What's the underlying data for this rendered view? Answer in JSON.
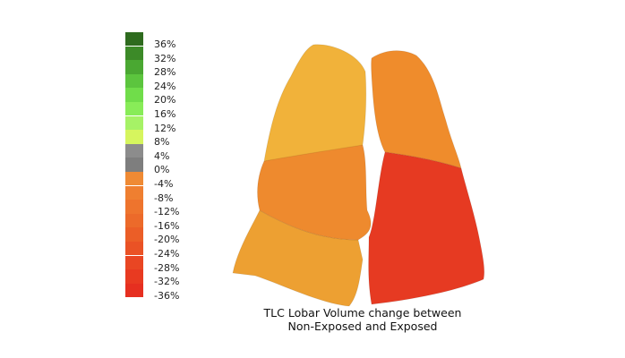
{
  "legend": {
    "items": [
      {
        "label": "36%",
        "color": "#2e6b1e"
      },
      {
        "label": "32%",
        "color": "#3c8a28"
      },
      {
        "label": "28%",
        "color": "#4aa832"
      },
      {
        "label": "24%",
        "color": "#5cc53e"
      },
      {
        "label": "20%",
        "color": "#70dd4a"
      },
      {
        "label": "16%",
        "color": "#88ec58"
      },
      {
        "label": "12%",
        "color": "#a6f266"
      },
      {
        "label": "8%",
        "color": "#d6f55e"
      },
      {
        "label": "4%",
        "color": "#8c8c8c"
      },
      {
        "label": "0%",
        "color": "#7e7e7e"
      },
      {
        "label": "-4%",
        "color": "#ef8a34"
      },
      {
        "label": "-8%",
        "color": "#ef7f30"
      },
      {
        "label": "-12%",
        "color": "#ee742d"
      },
      {
        "label": "-16%",
        "color": "#ec6a2a"
      },
      {
        "label": "-20%",
        "color": "#eb5e27"
      },
      {
        "label": "-24%",
        "color": "#ea5225"
      },
      {
        "label": "-28%",
        "color": "#e94623"
      },
      {
        "label": "-32%",
        "color": "#e83a21"
      },
      {
        "label": "-36%",
        "color": "#e62f20"
      }
    ]
  },
  "lung_colors": {
    "right_upper": "#f1b23a",
    "left_upper": "#ef8c2c",
    "right_middle": "#ee8a2e",
    "left_lower": "#e63a22",
    "right_lower": "#eda032"
  },
  "caption": {
    "line1": "TLC Lobar Volume change between",
    "line2": "Non-Exposed and Exposed"
  }
}
